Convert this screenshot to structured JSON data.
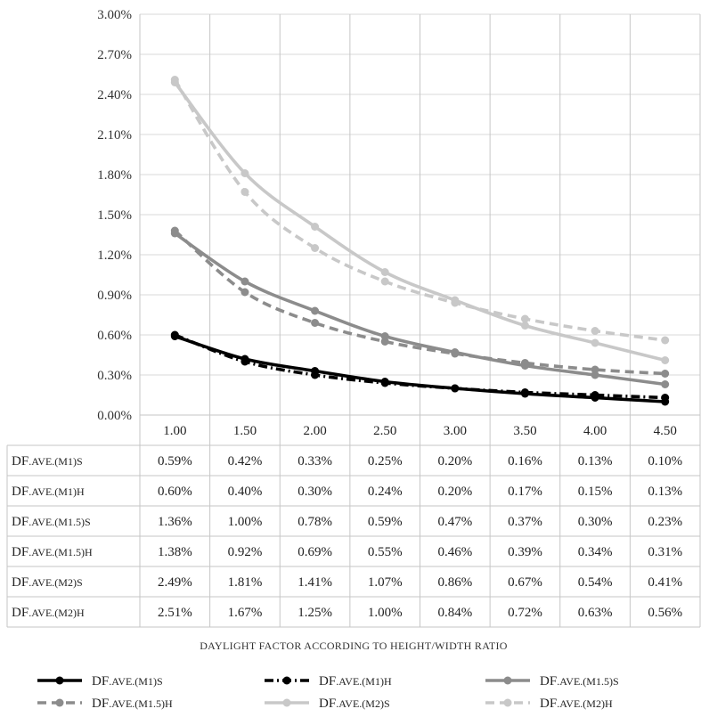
{
  "chart_data": {
    "type": "line",
    "x": [
      "1.00",
      "1.50",
      "2.00",
      "2.50",
      "3.00",
      "3.50",
      "4.00",
      "4.50"
    ],
    "ylim": [
      0,
      3.0
    ],
    "y_ticks": [
      "0.00%",
      "0.30%",
      "0.60%",
      "0.90%",
      "1.20%",
      "1.50%",
      "1.80%",
      "2.10%",
      "2.40%",
      "2.70%",
      "3.00%"
    ],
    "grid": true,
    "xlabel": "DAYLIGHT FACTOR ACCORDING TO HEIGHT/WIDTH RATIO",
    "legend_position": "bottom",
    "series": [
      {
        "name": "DF.AVE.(M1)S",
        "label_main": "DF",
        "label_small": ".AVE.(M1)",
        "label_end": "S",
        "color": "#000000",
        "dash": "solid",
        "values": [
          0.59,
          0.42,
          0.33,
          0.25,
          0.2,
          0.16,
          0.13,
          0.1
        ],
        "cells": [
          "0.59%",
          "0.42%",
          "0.33%",
          "0.25%",
          "0.20%",
          "0.16%",
          "0.13%",
          "0.10%"
        ]
      },
      {
        "name": "DF.AVE.(M1)H",
        "label_main": "DF",
        "label_small": ".AVE.(M1)",
        "label_end": "H",
        "color": "#000000",
        "dash": "dashdot",
        "values": [
          0.6,
          0.4,
          0.3,
          0.24,
          0.2,
          0.17,
          0.15,
          0.13
        ],
        "cells": [
          "0.60%",
          "0.40%",
          "0.30%",
          "0.24%",
          "0.20%",
          "0.17%",
          "0.15%",
          "0.13%"
        ]
      },
      {
        "name": "DF.AVE.(M1.5)S",
        "label_main": "DF",
        "label_small": ".AVE.(M1.5)",
        "label_end": "S",
        "color": "#8c8c8c",
        "dash": "solid",
        "values": [
          1.36,
          1.0,
          0.78,
          0.59,
          0.47,
          0.37,
          0.3,
          0.23
        ],
        "cells": [
          "1.36%",
          "1.00%",
          "0.78%",
          "0.59%",
          "0.47%",
          "0.37%",
          "0.30%",
          "0.23%"
        ]
      },
      {
        "name": "DF.AVE.(M1.5)H",
        "label_main": "DF",
        "label_small": ".AVE.(M1.5)",
        "label_end": "H",
        "color": "#8c8c8c",
        "dash": "dash",
        "values": [
          1.38,
          0.92,
          0.69,
          0.55,
          0.46,
          0.39,
          0.34,
          0.31
        ],
        "cells": [
          "1.38%",
          "0.92%",
          "0.69%",
          "0.55%",
          "0.46%",
          "0.39%",
          "0.34%",
          "0.31%"
        ]
      },
      {
        "name": "DF.AVE.(M2)S",
        "label_main": "DF",
        "label_small": ".AVE.(M2)",
        "label_end": "S",
        "color": "#c8c8c8",
        "dash": "solid",
        "values": [
          2.49,
          1.81,
          1.41,
          1.07,
          0.86,
          0.67,
          0.54,
          0.41
        ],
        "cells": [
          "2.49%",
          "1.81%",
          "1.41%",
          "1.07%",
          "0.86%",
          "0.67%",
          "0.54%",
          "0.41%"
        ]
      },
      {
        "name": "DF.AVE.(M2)H",
        "label_main": "DF",
        "label_small": ".AVE.(M2)",
        "label_end": "H",
        "color": "#c8c8c8",
        "dash": "dash",
        "values": [
          2.51,
          1.67,
          1.25,
          1.0,
          0.84,
          0.72,
          0.63,
          0.56
        ],
        "cells": [
          "2.51%",
          "1.67%",
          "1.25%",
          "1.00%",
          "0.84%",
          "0.72%",
          "0.63%",
          "0.56%"
        ]
      }
    ]
  }
}
